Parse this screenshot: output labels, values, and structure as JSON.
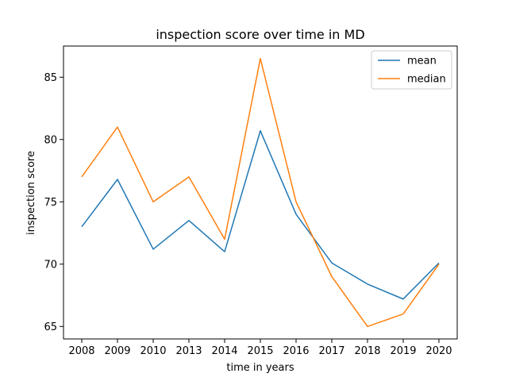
{
  "chart_data": {
    "type": "line",
    "title": "inspection score over time in MD",
    "xlabel": "time in years",
    "ylabel": "inspection score",
    "categories": [
      "2008",
      "2009",
      "2010",
      "2013",
      "2014",
      "2015",
      "2016",
      "2017",
      "2018",
      "2019",
      "2020"
    ],
    "ylim": [
      64,
      87.5
    ],
    "yticks": [
      65,
      70,
      75,
      80,
      85
    ],
    "grid": false,
    "legend_position": "top-right",
    "series": [
      {
        "name": "mean",
        "color": "#1f77b4",
        "values": [
          73.0,
          76.8,
          71.2,
          73.5,
          71.0,
          80.7,
          74.0,
          70.1,
          68.4,
          67.2,
          70.1
        ]
      },
      {
        "name": "median",
        "color": "#ff7f0e",
        "values": [
          77.0,
          81.0,
          75.0,
          77.0,
          72.0,
          86.5,
          75.0,
          69.0,
          65.0,
          66.0,
          70.0
        ]
      }
    ]
  }
}
